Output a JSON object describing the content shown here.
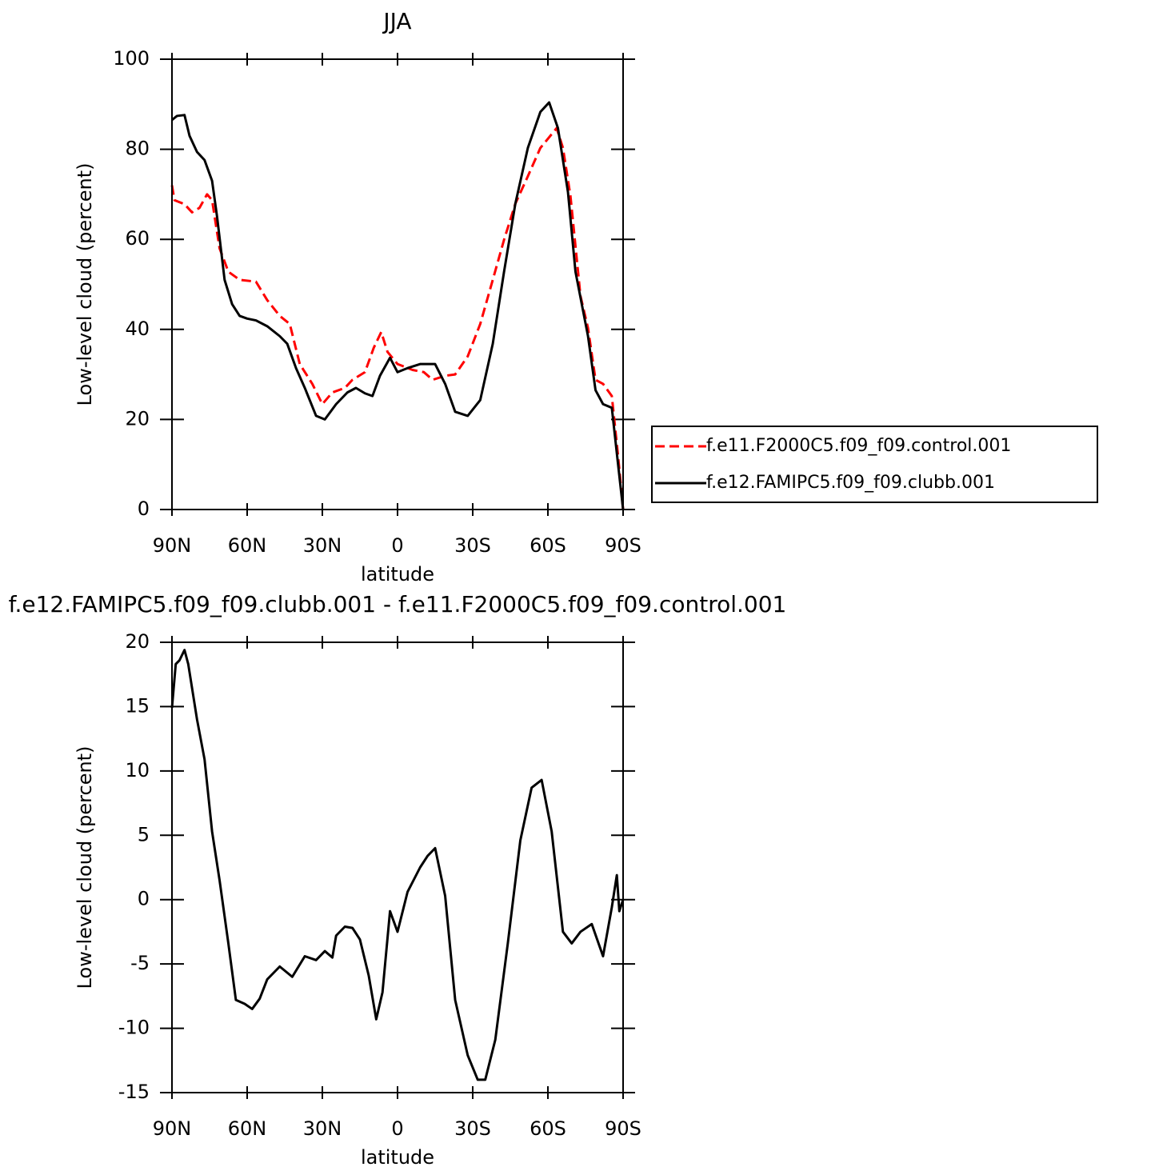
{
  "chart_data": [
    {
      "type": "line",
      "title": "JJA",
      "xlabel": "latitude",
      "ylabel": "Low-level cloud (percent)",
      "xlim": [
        90,
        -90
      ],
      "xticks": [
        {
          "value": 90,
          "label": "90N"
        },
        {
          "value": 60,
          "label": "60N"
        },
        {
          "value": 30,
          "label": "30N"
        },
        0,
        {
          "value": -30,
          "label": "30S"
        },
        {
          "value": -60,
          "label": "60S"
        },
        {
          "value": -90,
          "label": "90S"
        }
      ],
      "ylim": [
        0,
        100
      ],
      "yticks": [
        0,
        20,
        40,
        60,
        80,
        100
      ],
      "legend": "outside-right",
      "series": [
        {
          "name": "f.e11.F2000C5.f09_f09.control.001",
          "color": "#ff0000",
          "style": "dashed",
          "x": [
            90,
            89,
            85,
            82,
            79,
            76,
            74,
            71,
            67.5,
            63,
            56.5,
            52,
            47,
            43,
            39,
            34,
            30,
            26,
            21,
            18,
            13,
            9.5,
            6.5,
            4,
            0,
            -6,
            -10.5,
            -14,
            -19,
            -23,
            -28,
            -33,
            -38,
            -42.5,
            -47,
            -52,
            -57,
            -63.5,
            -66,
            -69,
            -73,
            -76,
            -79,
            -82,
            -85.5,
            -88,
            -90
          ],
          "values": [
            72,
            68.7,
            67.8,
            66,
            67,
            70,
            68.7,
            58,
            52.8,
            51,
            50.6,
            46.5,
            43,
            41.2,
            32.3,
            27.9,
            23.4,
            26,
            27,
            28.8,
            30.5,
            35.9,
            39.4,
            35,
            32.3,
            31,
            30.5,
            28.8,
            29.7,
            30,
            34,
            41.2,
            51,
            59.9,
            67.9,
            74,
            80.3,
            84.7,
            80.3,
            69.6,
            47.4,
            40.3,
            28.8,
            27.9,
            25.2,
            11.9,
            0
          ]
        },
        {
          "name": "f.e12.FAMIPC5.f09_f09.clubb.001",
          "color": "#000000",
          "style": "solid",
          "x": [
            90,
            88,
            85,
            83,
            80,
            77,
            74,
            72,
            69,
            66,
            63,
            60,
            56.5,
            52,
            47,
            44,
            40.5,
            37,
            32.5,
            29,
            24.5,
            20,
            16.6,
            13,
            10,
            7,
            3,
            0,
            -4,
            -9,
            -15,
            -19,
            -23,
            -28,
            -33,
            -38,
            -42.5,
            -47,
            -52,
            -57,
            -60.5,
            -64,
            -68,
            -71,
            -76,
            -79,
            -82,
            -85.5,
            -88,
            -90
          ],
          "values": [
            86.5,
            87.4,
            87.6,
            83,
            79.4,
            77.6,
            73,
            65,
            51,
            45.6,
            43,
            42.4,
            42,
            40.7,
            38.5,
            36.8,
            31.4,
            27,
            20.8,
            20,
            23.4,
            26,
            27,
            25.8,
            25.2,
            29.7,
            33.7,
            30.5,
            31.4,
            32.3,
            32.3,
            27.9,
            21.7,
            20.8,
            24.3,
            36.8,
            52.8,
            67.9,
            80.3,
            88.3,
            90.4,
            84.7,
            70.5,
            52.8,
            38.5,
            26.5,
            23.4,
            22.6,
            10,
            0
          ]
        }
      ]
    },
    {
      "type": "line",
      "title": "f.e12.FAMIPC5.f09_f09.clubb.001 - f.e11.F2000C5.f09_f09.control.001",
      "xlabel": "latitude",
      "ylabel": "Low-level cloud (percent)",
      "xlim": [
        90,
        -90
      ],
      "xticks": [
        {
          "value": 90,
          "label": "90N"
        },
        {
          "value": 60,
          "label": "60N"
        },
        {
          "value": 30,
          "label": "30N"
        },
        0,
        {
          "value": -30,
          "label": "30S"
        },
        {
          "value": -60,
          "label": "60S"
        },
        {
          "value": -90,
          "label": "90S"
        }
      ],
      "ylim": [
        -15,
        20
      ],
      "yticks": [
        -15,
        -10,
        -5,
        0,
        5,
        10,
        15,
        20
      ],
      "series": [
        {
          "color": "#000000",
          "style": "solid",
          "x": [
            90,
            88.5,
            87,
            85,
            83.5,
            80,
            77,
            74,
            71,
            67.5,
            64.5,
            61,
            58,
            55,
            52,
            47,
            42,
            37,
            32.5,
            29,
            26,
            24.5,
            21,
            18,
            15,
            11.5,
            8.5,
            6,
            3,
            0,
            -4,
            -9,
            -12,
            -15,
            -19,
            -23,
            -28,
            -32,
            -35,
            -39,
            -44,
            -49,
            -53.5,
            -57.5,
            -61.5,
            -66,
            -69.5,
            -73,
            -77.5,
            -82,
            -85.5,
            -87.5,
            -88.5,
            -90
          ],
          "values": [
            14.9,
            18.3,
            18.6,
            19.4,
            18.3,
            14,
            10.9,
            5.3,
            1.5,
            -3.4,
            -7.8,
            -8.1,
            -8.5,
            -7.7,
            -6.2,
            -5.2,
            -6,
            -4.4,
            -4.7,
            -4,
            -4.5,
            -2.8,
            -2.1,
            -2.2,
            -3.1,
            -5.9,
            -9.3,
            -7.2,
            -0.9,
            -2.5,
            0.6,
            2.5,
            3.4,
            4,
            0.3,
            -7.8,
            -12.1,
            -14,
            -14,
            -10.9,
            -3.4,
            4.6,
            8.7,
            9.3,
            5.3,
            -2.5,
            -3.4,
            -2.5,
            -1.9,
            -4.4,
            -0.6,
            1.9,
            -0.9,
            0
          ]
        }
      ]
    }
  ]
}
